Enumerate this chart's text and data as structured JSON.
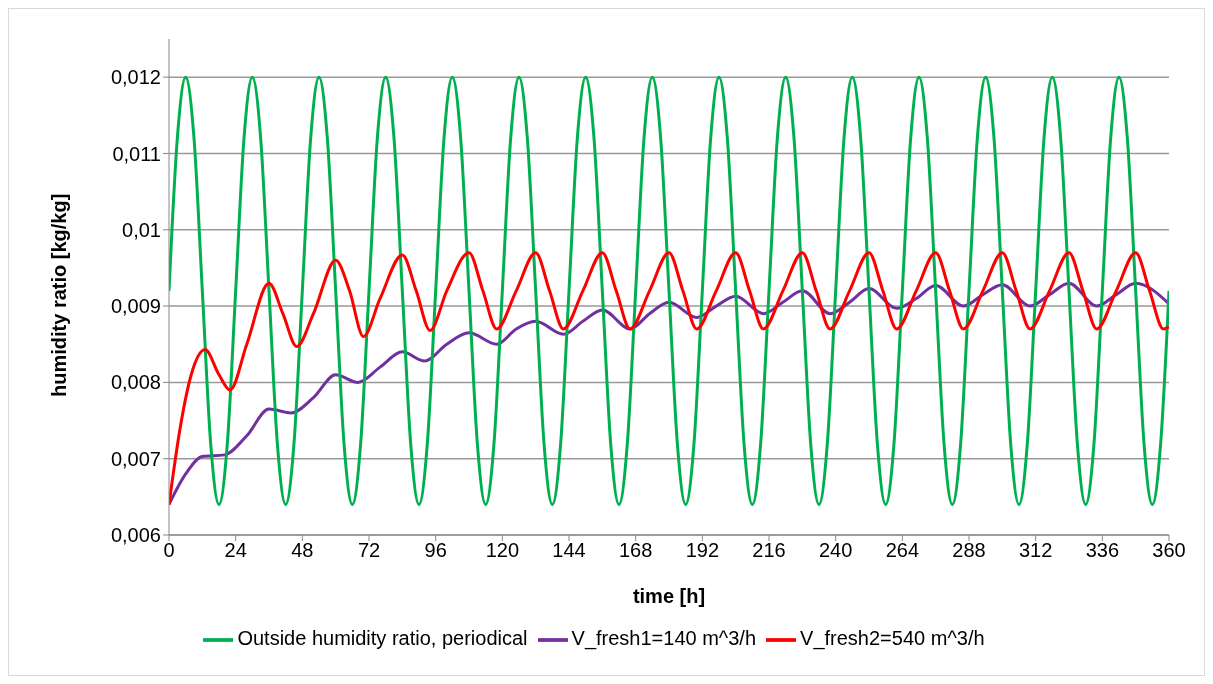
{
  "chart_data": {
    "type": "line",
    "xlabel": "time [h]",
    "ylabel": "humidity ratio [kg/kg]",
    "xlim": [
      0,
      360
    ],
    "xticks": [
      0,
      24,
      48,
      72,
      96,
      120,
      144,
      168,
      192,
      216,
      240,
      264,
      288,
      312,
      336,
      360
    ],
    "ylim": [
      0.006,
      0.0125
    ],
    "yticks": [
      {
        "value": 0.006,
        "label": "0,006"
      },
      {
        "value": 0.007,
        "label": "0,007"
      },
      {
        "value": 0.008,
        "label": "0,008"
      },
      {
        "value": 0.009,
        "label": "0,009"
      },
      {
        "value": 0.01,
        "label": "0,01"
      },
      {
        "value": 0.011,
        "label": "0,011"
      },
      {
        "value": 0.012,
        "label": "0,012"
      }
    ],
    "grid": "y",
    "legend": "bottom",
    "marker": "none",
    "line_style": "solid",
    "series": [
      {
        "name": "V_fresh1=140 m^3/h",
        "color": "#7030a0",
        "x": [
          0,
          6,
          12,
          20,
          28,
          36,
          44,
          52,
          60,
          68,
          76,
          84,
          92,
          100,
          108,
          118,
          125,
          132,
          142,
          149,
          156,
          166,
          173,
          180,
          190,
          197,
          204,
          214,
          221,
          228,
          238,
          245,
          252,
          262,
          269,
          276,
          286,
          293,
          300,
          310,
          317,
          324,
          334,
          341,
          348,
          360
        ],
        "values": [
          0.0064,
          0.0068,
          0.00703,
          0.00705,
          0.0073,
          0.00765,
          0.0076,
          0.0078,
          0.0081,
          0.008,
          0.0082,
          0.0084,
          0.00828,
          0.0085,
          0.00865,
          0.0085,
          0.0087,
          0.0088,
          0.00863,
          0.0088,
          0.00895,
          0.0087,
          0.0089,
          0.00905,
          0.00885,
          0.009,
          0.00913,
          0.0089,
          0.00905,
          0.0092,
          0.0089,
          0.00905,
          0.00923,
          0.00897,
          0.0091,
          0.00927,
          0.009,
          0.00915,
          0.00928,
          0.009,
          0.00915,
          0.0093,
          0.009,
          0.00915,
          0.0093,
          0.00903
        ]
      },
      {
        "name": "Outside humidity ratio, periodical",
        "color": "#00b050",
        "x": [
          0,
          3,
          6,
          9,
          12,
          15,
          18,
          21,
          24,
          27,
          30,
          33,
          36,
          39,
          42,
          45,
          48,
          51,
          54,
          57,
          60,
          63,
          66,
          69,
          72,
          75,
          78,
          81,
          84,
          87,
          90,
          93,
          96,
          99,
          102,
          105,
          108,
          111,
          114,
          117,
          120,
          123,
          126,
          129,
          132,
          135,
          138,
          141,
          144,
          147,
          150,
          153,
          156,
          159,
          162,
          165,
          168,
          171,
          174,
          177,
          180,
          183,
          186,
          189,
          192,
          195,
          198,
          201,
          204,
          207,
          210,
          213,
          216,
          219,
          222,
          225,
          228,
          231,
          234,
          237,
          240,
          243,
          246,
          249,
          252,
          255,
          258,
          261,
          264,
          267,
          270,
          273,
          276,
          279,
          282,
          285,
          288,
          291,
          294,
          297,
          300,
          303,
          306,
          309,
          312,
          315,
          318,
          321,
          324,
          327,
          330,
          333,
          336,
          339,
          342,
          345,
          348,
          351,
          354,
          357,
          360
        ],
        "values": [
          0.0092,
          0.0112,
          0.012,
          0.0112,
          0.0092,
          0.0072,
          0.0064,
          0.0072,
          0.0092,
          0.0112,
          0.012,
          0.0112,
          0.0092,
          0.0072,
          0.0064,
          0.0072,
          0.0092,
          0.0112,
          0.012,
          0.0112,
          0.0092,
          0.0072,
          0.0064,
          0.0072,
          0.0092,
          0.0112,
          0.012,
          0.0112,
          0.0092,
          0.0072,
          0.0064,
          0.0072,
          0.0092,
          0.0112,
          0.012,
          0.0112,
          0.0092,
          0.0072,
          0.0064,
          0.0072,
          0.0092,
          0.0112,
          0.012,
          0.0112,
          0.0092,
          0.0072,
          0.0064,
          0.0072,
          0.0092,
          0.0112,
          0.012,
          0.0112,
          0.0092,
          0.0072,
          0.0064,
          0.0072,
          0.0092,
          0.0112,
          0.012,
          0.0112,
          0.0092,
          0.0072,
          0.0064,
          0.0072,
          0.0092,
          0.0112,
          0.012,
          0.0112,
          0.0092,
          0.0072,
          0.0064,
          0.0072,
          0.0092,
          0.0112,
          0.012,
          0.0112,
          0.0092,
          0.0072,
          0.0064,
          0.0072,
          0.0092,
          0.0112,
          0.012,
          0.0112,
          0.0092,
          0.0072,
          0.0064,
          0.0072,
          0.0092,
          0.0112,
          0.012,
          0.0112,
          0.0092,
          0.0072,
          0.0064,
          0.0072,
          0.0092,
          0.0112,
          0.012,
          0.0112,
          0.0092,
          0.0072,
          0.0064,
          0.0072,
          0.0092,
          0.0112,
          0.012,
          0.0112,
          0.0092,
          0.0072,
          0.0064,
          0.0072,
          0.0092,
          0.0112,
          0.012,
          0.0112,
          0.0092,
          0.0072,
          0.0064,
          0.0072,
          0.0092
        ]
      },
      {
        "name": "V_fresh2=540 m^3/h",
        "color": "#ff0000",
        "x": [
          0,
          4,
          8,
          13,
          18,
          22,
          28,
          36,
          41,
          46,
          52,
          60,
          65,
          70,
          76,
          84,
          89,
          94,
          100,
          108,
          113,
          118,
          125,
          132,
          137,
          142,
          149,
          156,
          161,
          166,
          173,
          180,
          185,
          190,
          197,
          204,
          209,
          214,
          221,
          228,
          233,
          238,
          245,
          252,
          257,
          262,
          269,
          276,
          281,
          286,
          293,
          300,
          305,
          310,
          317,
          324,
          329,
          334,
          341,
          348,
          353,
          358,
          360
        ],
        "values": [
          0.0064,
          0.0074,
          0.0081,
          0.00843,
          0.0081,
          0.0079,
          0.0085,
          0.0093,
          0.0089,
          0.00847,
          0.0089,
          0.0096,
          0.0092,
          0.0086,
          0.0091,
          0.00967,
          0.0092,
          0.00868,
          0.0092,
          0.0097,
          0.0092,
          0.0087,
          0.0092,
          0.0097,
          0.0092,
          0.0087,
          0.0092,
          0.0097,
          0.0092,
          0.0087,
          0.0092,
          0.0097,
          0.0092,
          0.0087,
          0.0092,
          0.0097,
          0.0092,
          0.0087,
          0.0092,
          0.0097,
          0.0092,
          0.0087,
          0.0092,
          0.0097,
          0.0092,
          0.0087,
          0.0092,
          0.0097,
          0.0092,
          0.0087,
          0.0092,
          0.0097,
          0.0092,
          0.0087,
          0.0092,
          0.0097,
          0.0092,
          0.0087,
          0.0092,
          0.0097,
          0.0092,
          0.0087,
          0.00873
        ]
      }
    ]
  }
}
